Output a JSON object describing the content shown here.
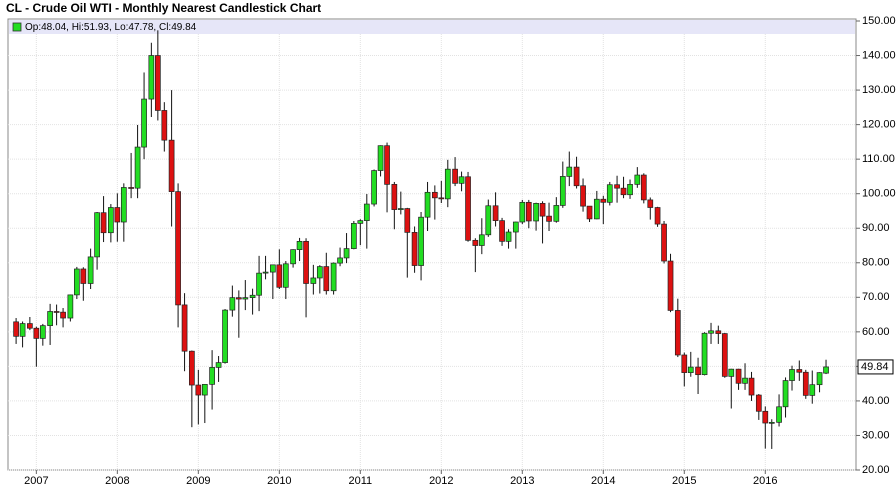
{
  "chart_data": {
    "type": "candlestick",
    "title": "CL - Crude Oil WTI - Monthly Nearest Candlestick Chart",
    "legend_text": "Op:48.04, Hi:51.93, Lo:47.78, Cl:49.84",
    "up_color": "#22dd22",
    "down_color": "#dd1111",
    "grid": true,
    "xlim": [
      2006.65,
      2017.12
    ],
    "xticks": [
      2007,
      2008,
      2009,
      2010,
      2011,
      2012,
      2013,
      2014,
      2015,
      2016
    ],
    "ylim": [
      20,
      150
    ],
    "yticks": [
      {
        "value": 20,
        "label": "20.00"
      },
      {
        "value": 30,
        "label": "30.00"
      },
      {
        "value": 40,
        "label": "40.00"
      },
      {
        "value": 50,
        "label": "50.00"
      },
      {
        "value": 60,
        "label": "60.00"
      },
      {
        "value": 70,
        "label": "70.00"
      },
      {
        "value": 80,
        "label": "80.00"
      },
      {
        "value": 90,
        "label": "90.00"
      },
      {
        "value": 100,
        "label": "100.00"
      },
      {
        "value": 110,
        "label": "110.00"
      },
      {
        "value": 120,
        "label": "120.00"
      },
      {
        "value": 130,
        "label": "130.00"
      },
      {
        "value": 140,
        "label": "140.00"
      },
      {
        "value": 150,
        "label": "150.00"
      }
    ],
    "x": [
      2006.75,
      2006.83,
      2006.92,
      2007.0,
      2007.08,
      2007.17,
      2007.25,
      2007.33,
      2007.42,
      2007.5,
      2007.58,
      2007.67,
      2007.75,
      2007.83,
      2007.92,
      2008.0,
      2008.08,
      2008.17,
      2008.25,
      2008.33,
      2008.42,
      2008.5,
      2008.58,
      2008.67,
      2008.75,
      2008.83,
      2008.92,
      2009.0,
      2009.08,
      2009.17,
      2009.25,
      2009.33,
      2009.42,
      2009.5,
      2009.58,
      2009.67,
      2009.75,
      2009.83,
      2009.92,
      2010.0,
      2010.08,
      2010.17,
      2010.25,
      2010.33,
      2010.42,
      2010.5,
      2010.58,
      2010.67,
      2010.75,
      2010.83,
      2010.92,
      2011.0,
      2011.08,
      2011.17,
      2011.25,
      2011.33,
      2011.42,
      2011.5,
      2011.58,
      2011.67,
      2011.75,
      2011.83,
      2011.92,
      2012.0,
      2012.08,
      2012.17,
      2012.25,
      2012.33,
      2012.42,
      2012.5,
      2012.58,
      2012.67,
      2012.75,
      2012.83,
      2012.92,
      2013.0,
      2013.08,
      2013.17,
      2013.25,
      2013.33,
      2013.42,
      2013.5,
      2013.58,
      2013.67,
      2013.75,
      2013.83,
      2013.92,
      2014.0,
      2014.08,
      2014.17,
      2014.25,
      2014.33,
      2014.42,
      2014.5,
      2014.58,
      2014.67,
      2014.75,
      2014.83,
      2014.92,
      2015.0,
      2015.08,
      2015.17,
      2015.25,
      2015.33,
      2015.42,
      2015.5,
      2015.58,
      2015.67,
      2015.75,
      2015.83,
      2015.92,
      2016.0,
      2016.08,
      2016.17,
      2016.25,
      2016.33,
      2016.42,
      2016.5,
      2016.58,
      2016.67,
      2016.75
    ],
    "open": [
      62.9,
      58.7,
      62.4,
      61.05,
      58.1,
      61.8,
      65.9,
      65.7,
      64.0,
      70.7,
      78.2,
      74.0,
      81.7,
      94.5,
      88.7,
      96.0,
      91.8,
      101.8,
      101.6,
      113.5,
      127.4,
      140.0,
      124.1,
      115.5,
      100.6,
      67.8,
      54.4,
      44.6,
      41.7,
      44.8,
      49.7,
      51.1,
      66.3,
      69.9,
      69.5,
      69.9,
      70.6,
      77.0,
      77.3,
      79.4,
      72.9,
      79.7,
      83.8,
      86.2,
      74.0,
      75.6,
      78.9,
      71.9,
      79.9,
      81.4,
      84.1,
      91.4,
      92.2,
      97.0,
      106.7,
      113.9,
      102.7,
      95.4,
      95.7,
      88.8,
      79.2,
      93.2,
      100.4,
      98.8,
      98.5,
      107.1,
      103.0,
      104.9,
      86.5,
      85.0,
      88.1,
      96.5,
      92.2,
      86.2,
      88.9,
      91.8,
      97.5,
      92.1,
      97.2,
      93.5,
      92.0,
      96.6,
      105.0,
      107.7,
      102.3,
      96.4,
      92.7,
      98.4,
      97.5,
      102.6,
      101.6,
      99.7,
      102.7,
      105.4,
      98.2,
      96.0,
      91.2,
      80.5,
      66.2,
      53.3,
      48.2,
      49.8,
      47.6,
      59.6,
      60.3,
      59.5,
      47.1,
      49.2,
      45.1,
      46.6,
      41.7,
      37.0,
      33.6,
      33.8,
      38.3,
      45.9,
      49.1,
      48.3,
      41.6,
      44.7,
      48.04
    ],
    "high": [
      64.0,
      63.0,
      64.3,
      61.5,
      62.3,
      68.1,
      67.9,
      66.9,
      70.8,
      78.8,
      78.7,
      84.1,
      94.7,
      99.3,
      97.0,
      100.1,
      103.0,
      111.8,
      119.9,
      135.1,
      143.7,
      147.3,
      126.5,
      130.0,
      103.0,
      71.2,
      54.6,
      49.0,
      43.8,
      54.7,
      53.0,
      66.6,
      73.4,
      72.0,
      75.0,
      72.5,
      82.0,
      82.0,
      79.4,
      83.9,
      80.5,
      83.9,
      87.2,
      87.1,
      79.4,
      79.3,
      82.9,
      80.1,
      84.4,
      88.6,
      92.1,
      92.6,
      99.9,
      107.0,
      114.0,
      114.8,
      103.4,
      100.6,
      95.9,
      90.5,
      94.7,
      103.4,
      102.4,
      103.7,
      109.8,
      110.6,
      106.4,
      106.3,
      87.1,
      92.9,
      98.3,
      100.4,
      93.0,
      89.7,
      91.9,
      98.2,
      98.2,
      97.4,
      97.8,
      97.4,
      99.0,
      109.3,
      112.2,
      110.7,
      104.4,
      96.4,
      100.8,
      99.4,
      103.4,
      105.2,
      104.9,
      104.1,
      107.7,
      105.9,
      98.9,
      96.2,
      92.1,
      82.6,
      69.6,
      54.0,
      54.2,
      52.5,
      59.9,
      62.6,
      61.8,
      59.7,
      49.3,
      49.3,
      50.9,
      48.4,
      42.0,
      38.4,
      34.7,
      41.9,
      46.8,
      50.2,
      51.7,
      49.0,
      48.8,
      48.3,
      51.93
    ],
    "low": [
      56.5,
      55.5,
      60.5,
      49.9,
      56.0,
      56.2,
      61.9,
      61.3,
      63.0,
      69.5,
      69.0,
      72.4,
      78.0,
      86.0,
      85.9,
      86.1,
      86.1,
      98.7,
      98.7,
      110.0,
      122.2,
      121.2,
      112.2,
      90.5,
      61.3,
      48.6,
      32.4,
      33.2,
      33.6,
      37.5,
      45.5,
      50.8,
      64.4,
      58.3,
      66.3,
      65.0,
      66.0,
      75.2,
      69.5,
      72.4,
      69.5,
      78.6,
      80.5,
      64.2,
      70.8,
      71.1,
      70.8,
      70.8,
      79.0,
      79.9,
      83.9,
      85.1,
      84.1,
      96.3,
      105.0,
      94.6,
      89.7,
      94.0,
      75.7,
      77.1,
      74.9,
      89.2,
      92.5,
      97.3,
      96.1,
      102.2,
      100.7,
      86.1,
      77.3,
      82.5,
      87.5,
      90.5,
      84.9,
      84.1,
      84.1,
      91.2,
      90.0,
      89.3,
      85.6,
      89.2,
      91.6,
      95.9,
      102.2,
      101.5,
      94.8,
      91.8,
      92.6,
      91.2,
      96.6,
      97.4,
      98.7,
      98.5,
      101.7,
      97.2,
      92.5,
      90.4,
      79.8,
      65.7,
      52.7,
      44.2,
      47.0,
      42.0,
      47.4,
      56.5,
      56.5,
      46.7,
      37.8,
      43.2,
      43.2,
      40.0,
      34.5,
      26.2,
      26.1,
      32.6,
      35.2,
      43.0,
      45.8,
      40.6,
      39.2,
      42.5,
      47.78
    ],
    "close": [
      58.7,
      62.4,
      61.05,
      58.1,
      61.8,
      65.9,
      65.7,
      64.0,
      70.7,
      78.2,
      74.0,
      81.7,
      94.5,
      88.7,
      96.0,
      91.8,
      101.8,
      101.6,
      113.5,
      127.4,
      140.0,
      124.1,
      115.5,
      100.6,
      67.8,
      54.4,
      44.6,
      41.7,
      44.8,
      49.7,
      51.1,
      66.3,
      69.9,
      69.5,
      69.9,
      70.6,
      77.0,
      77.3,
      79.4,
      72.9,
      79.7,
      83.8,
      86.2,
      74.0,
      75.6,
      78.9,
      71.9,
      79.9,
      81.4,
      84.1,
      91.4,
      92.2,
      97.0,
      106.7,
      113.9,
      102.7,
      95.4,
      95.7,
      88.8,
      79.2,
      93.2,
      100.4,
      98.8,
      98.5,
      107.1,
      103.0,
      104.9,
      86.5,
      85.0,
      88.1,
      96.5,
      92.2,
      86.2,
      88.9,
      91.8,
      97.5,
      92.1,
      97.2,
      93.5,
      92.0,
      96.6,
      105.0,
      107.7,
      102.3,
      96.4,
      92.7,
      98.4,
      97.5,
      102.6,
      101.6,
      99.7,
      102.7,
      105.4,
      98.2,
      96.0,
      91.2,
      80.5,
      66.2,
      53.3,
      48.2,
      49.8,
      47.6,
      59.6,
      60.3,
      59.5,
      47.1,
      49.2,
      45.1,
      46.6,
      41.7,
      37.0,
      33.6,
      33.8,
      38.3,
      45.9,
      49.1,
      48.3,
      41.6,
      44.7,
      48.2,
      49.84
    ]
  }
}
